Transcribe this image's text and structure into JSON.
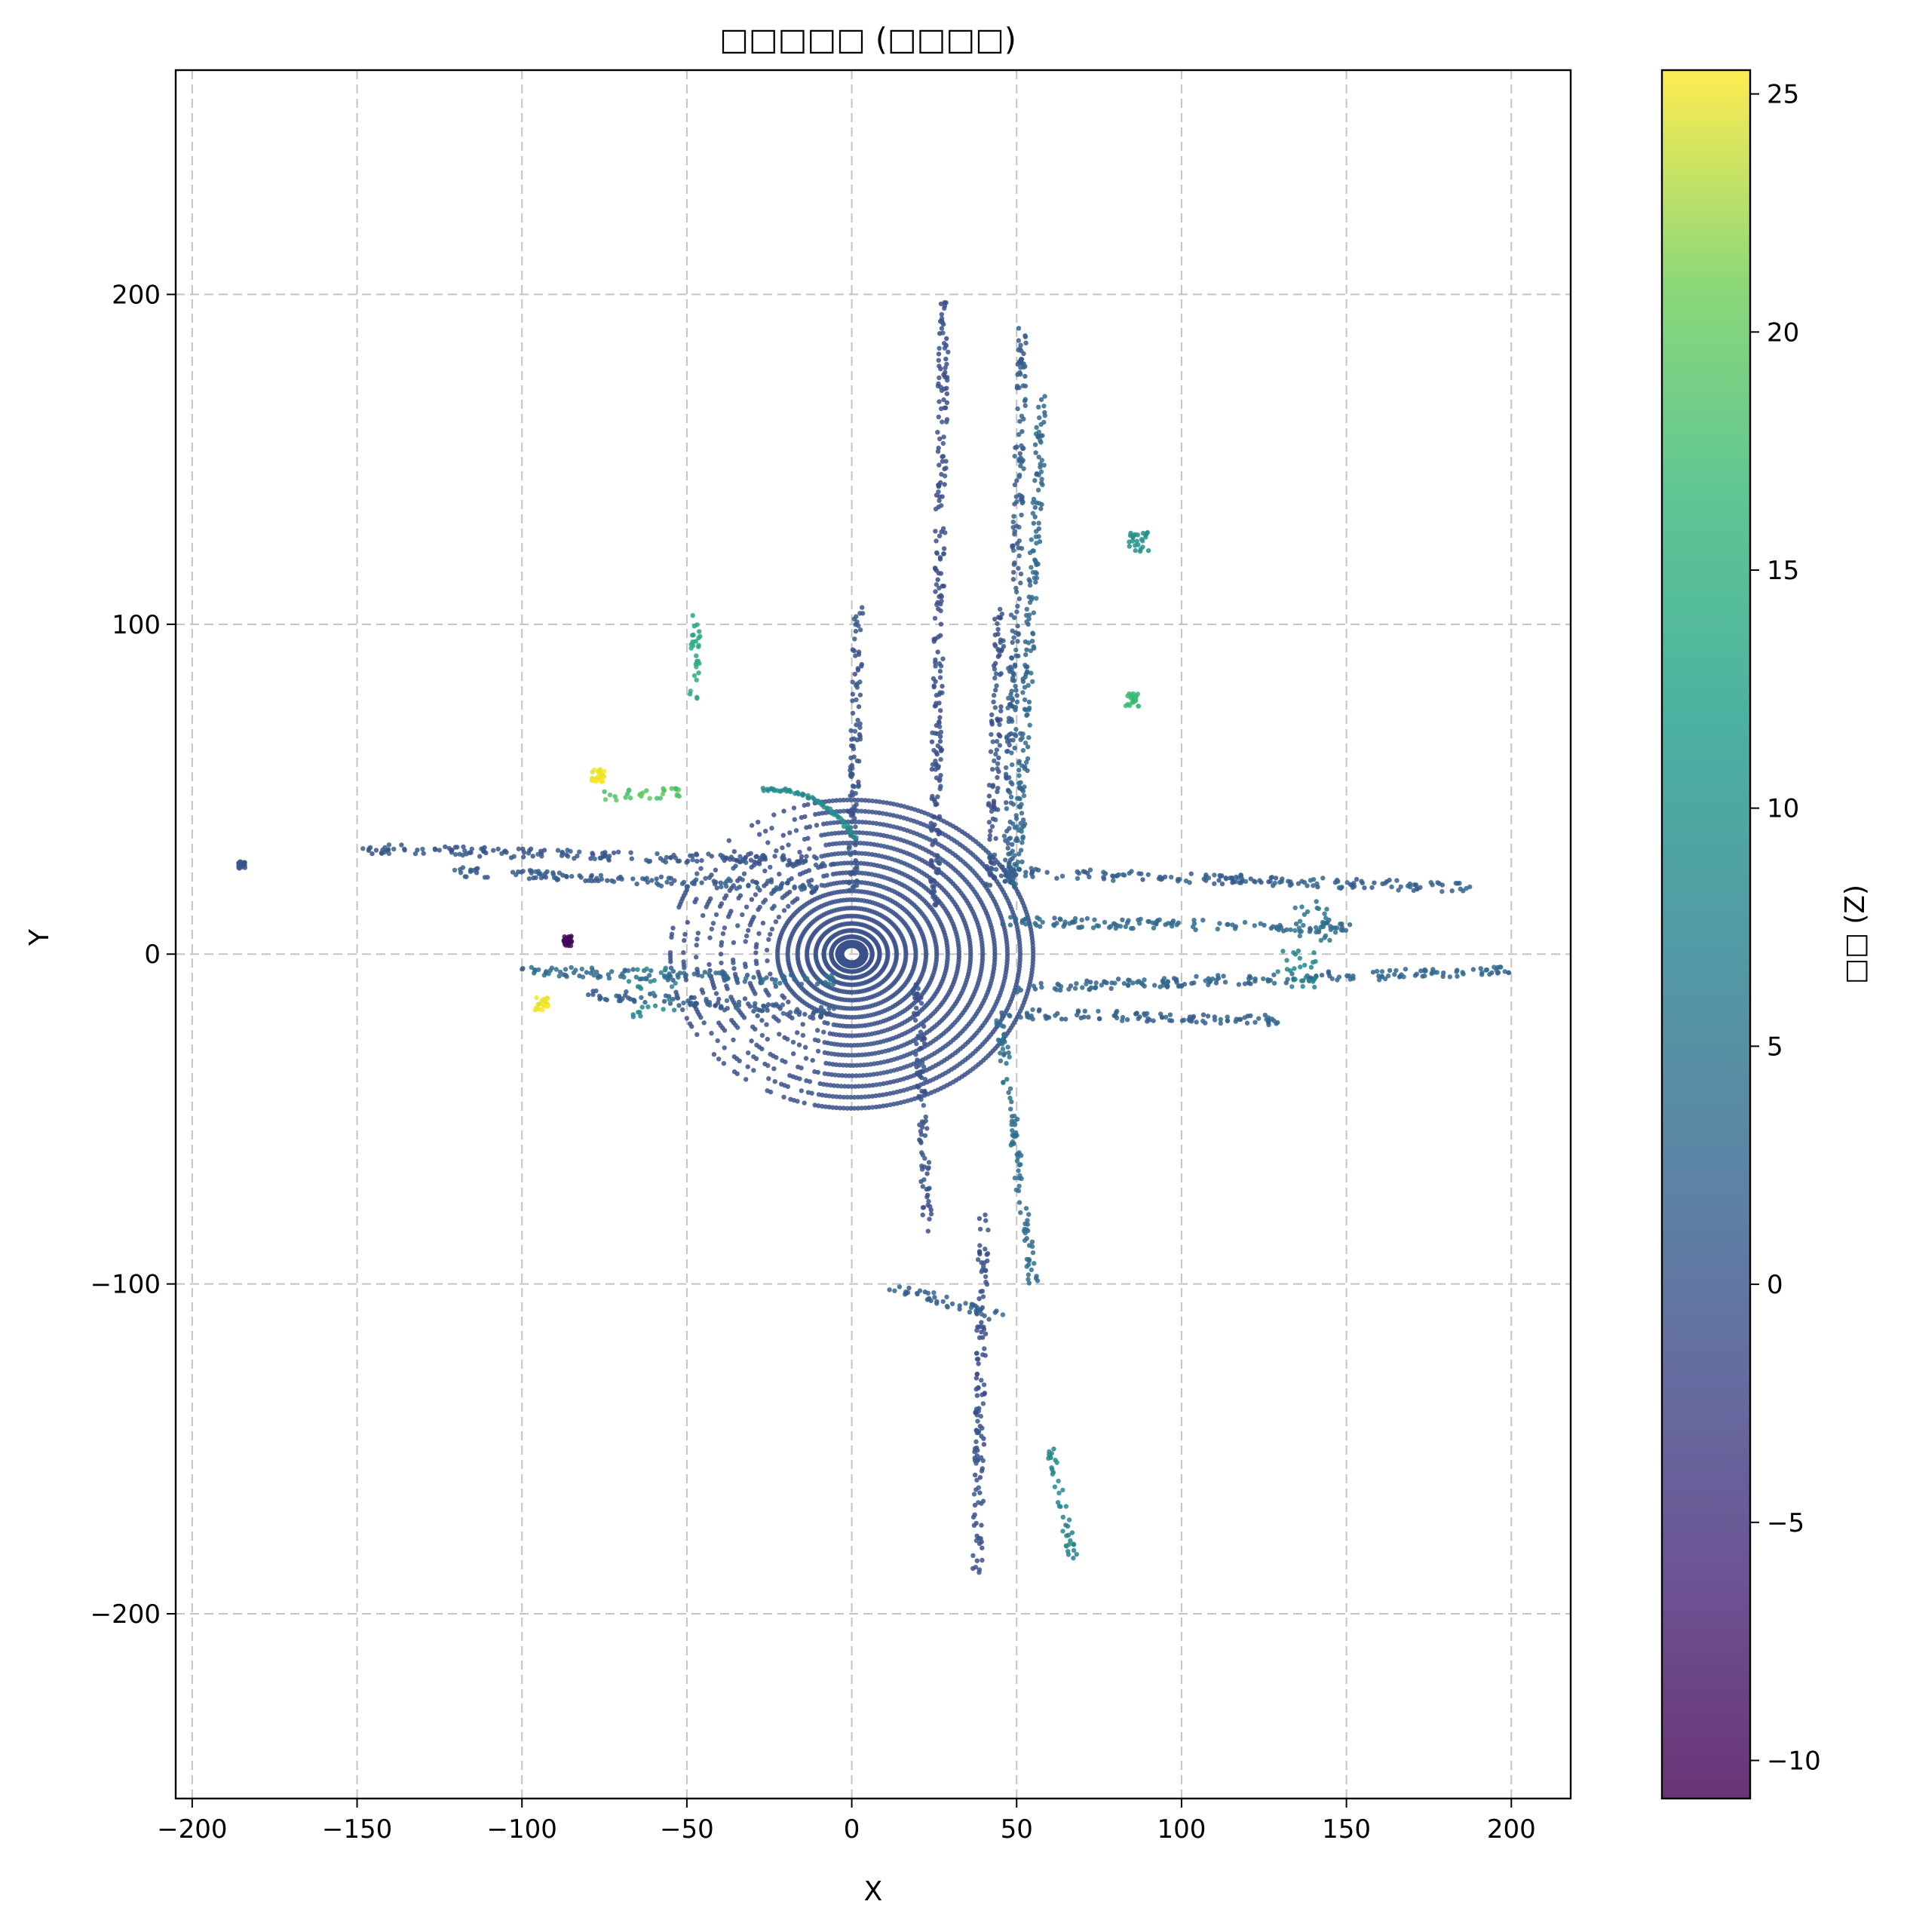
{
  "chart_data": {
    "type": "scatter",
    "title": "□□□□□ (□□□□)",
    "xlabel": "X",
    "ylabel": "Y",
    "colorbar_label": "□□ (Z)",
    "xlim": [
      -205,
      218
    ],
    "ylim": [
      -256,
      268
    ],
    "xticks": [
      -200,
      -150,
      -100,
      -50,
      0,
      50,
      100,
      150,
      200
    ],
    "yticks": [
      -200,
      -100,
      0,
      100,
      200
    ],
    "xtick_labels": [
      "−200",
      "−150",
      "−100",
      "−50",
      "0",
      "50",
      "100",
      "150",
      "200"
    ],
    "ytick_labels": [
      "−200",
      "−100",
      "0",
      "100",
      "200"
    ],
    "colorbar_range": [
      -10.8,
      25.5
    ],
    "colorbar_ticks": [
      -10,
      -5,
      0,
      5,
      10,
      15,
      20,
      25
    ],
    "colorbar_tick_labels": [
      "−10",
      "−5",
      "0",
      "5",
      "10",
      "15",
      "20",
      "25"
    ],
    "colormap": "viridis",
    "grid": true,
    "point_groups": [
      {
        "shape": "rings",
        "center": [
          0,
          0
        ],
        "r_min": 3,
        "r_max": 55,
        "z": -0.5
      },
      {
        "shape": "line",
        "from": [
          25,
          15
        ],
        "to": [
          28,
          198
        ],
        "z": -0.5
      },
      {
        "shape": "line",
        "from": [
          42,
          20
        ],
        "to": [
          45,
          105
        ],
        "z": -0.5
      },
      {
        "shape": "line",
        "from": [
          0,
          20
        ],
        "to": [
          2,
          105
        ],
        "z": 0.0
      },
      {
        "shape": "line",
        "from": [
          47,
          20
        ],
        "to": [
          52,
          190
        ],
        "z": 1.5
      },
      {
        "shape": "line",
        "from": [
          50,
          20
        ],
        "to": [
          58,
          170
        ],
        "z": 3.0
      },
      {
        "shape": "line",
        "from": [
          -150,
          32
        ],
        "to": [
          -5,
          28
        ],
        "z": 0.5
      },
      {
        "shape": "line",
        "from": [
          -120,
          25
        ],
        "to": [
          -10,
          20
        ],
        "z": 1.0
      },
      {
        "shape": "line",
        "from": [
          -100,
          -5
        ],
        "to": [
          -5,
          -8
        ],
        "z": 3.0
      },
      {
        "shape": "line",
        "from": [
          -80,
          -12
        ],
        "to": [
          -5,
          -18
        ],
        "z": 1.0
      },
      {
        "shape": "line",
        "from": [
          45,
          25
        ],
        "to": [
          190,
          20
        ],
        "z": 1.5
      },
      {
        "shape": "line",
        "from": [
          45,
          10
        ],
        "to": [
          150,
          8
        ],
        "z": 3.0
      },
      {
        "shape": "line",
        "from": [
          50,
          -10
        ],
        "to": [
          200,
          -5
        ],
        "z": 2.5
      },
      {
        "shape": "line",
        "from": [
          45,
          -18
        ],
        "to": [
          130,
          -20
        ],
        "z": 2.0
      },
      {
        "shape": "line",
        "from": [
          20,
          -10
        ],
        "to": [
          23,
          -85
        ],
        "z": -0.5
      },
      {
        "shape": "line",
        "from": [
          40,
          -80
        ],
        "to": [
          38,
          -188
        ],
        "z": -0.5
      },
      {
        "shape": "line",
        "from": [
          45,
          -20
        ],
        "to": [
          55,
          -100
        ],
        "z": 4.0
      },
      {
        "shape": "line",
        "from": [
          10,
          -100
        ],
        "to": [
          45,
          -110
        ],
        "z": 2.0
      },
      {
        "shape": "line",
        "from": [
          60,
          -150
        ],
        "to": [
          67,
          -183
        ],
        "z": 8.0
      },
      {
        "shape": "arc",
        "center": [
          -25,
          20
        ],
        "radius": 30,
        "a0": 30,
        "a1": 95,
        "z": 9.0
      },
      {
        "shape": "line",
        "from": [
          -48,
          78
        ],
        "to": [
          -47,
          102
        ],
        "z": 14.0
      },
      {
        "shape": "line",
        "from": [
          -75,
          48
        ],
        "to": [
          -50,
          49
        ],
        "z": 19.0
      },
      {
        "shape": "cluster",
        "center": [
          -77,
          54
        ],
        "spread": 2,
        "z": 25.0
      },
      {
        "shape": "cluster",
        "center": [
          -94,
          -15
        ],
        "spread": 2,
        "z": 25.0
      },
      {
        "shape": "cluster",
        "center": [
          -86,
          4
        ],
        "spread": 1.5,
        "z": -10.0
      },
      {
        "shape": "cluster",
        "center": [
          85,
          77
        ],
        "spread": 2,
        "z": 17.0
      },
      {
        "shape": "cluster",
        "center": [
          87,
          125
        ],
        "spread": 3,
        "z": 10.0
      },
      {
        "shape": "cluster",
        "center": [
          140,
          10
        ],
        "spread": 6,
        "z": 5.0
      },
      {
        "shape": "cluster",
        "center": [
          135,
          -5
        ],
        "spread": 6,
        "z": 8.0
      },
      {
        "shape": "cluster",
        "center": [
          -60,
          -12
        ],
        "spread": 8,
        "z": 8.0
      },
      {
        "shape": "cluster",
        "center": [
          -185,
          27
        ],
        "spread": 1,
        "z": 0.0
      }
    ]
  }
}
